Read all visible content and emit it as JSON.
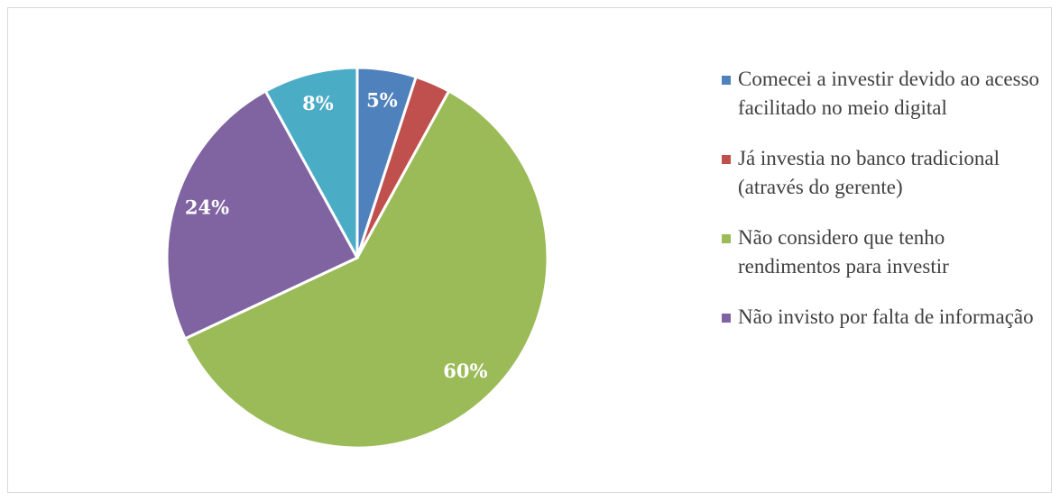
{
  "chart_data": {
    "type": "pie",
    "categories": [
      "Comecei a investir devido ao acesso facilitado no meio digital",
      "Já investia no banco tradicional (através do gerente)",
      "Não considero que tenho rendimentos para investir",
      "Não invisto por falta de informação",
      null
    ],
    "values": [
      5,
      3,
      60,
      24,
      8
    ],
    "value_labels": [
      "5%",
      null,
      "60%",
      "24%",
      "8%"
    ],
    "colors": [
      "#4f81bd",
      "#c0504d",
      "#9bbb59",
      "#8064a2",
      "#4bacc6"
    ],
    "legend": "right"
  }
}
